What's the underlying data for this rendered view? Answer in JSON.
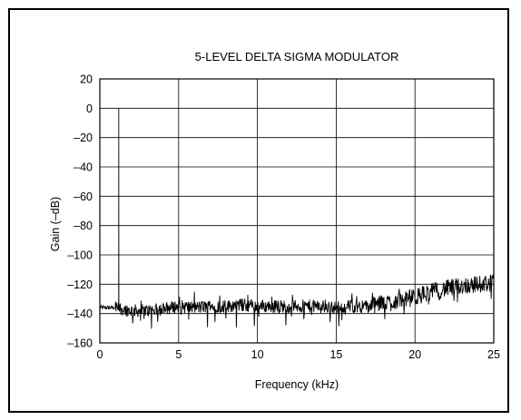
{
  "chart_data": {
    "type": "line",
    "title": "5-LEVEL DELTA SIGMA MODULATOR",
    "xlabel": "Frequency (kHz)",
    "ylabel": "Gain (–dB)",
    "xlim": [
      0,
      25
    ],
    "ylim": [
      -160,
      20
    ],
    "x_ticks": [
      0,
      5,
      10,
      15,
      20,
      25
    ],
    "y_ticks": [
      20,
      0,
      -20,
      -40,
      -60,
      -80,
      -100,
      -120,
      -140,
      -160
    ],
    "y_tick_labels": [
      "20",
      "0",
      "–20",
      "–40",
      "–60",
      "–80",
      "–100",
      "–120",
      "–140",
      "–160"
    ],
    "grid": true,
    "spike": {
      "x": 1.2,
      "y": 0
    },
    "noise_floor_envelope": {
      "x": [
        0,
        1,
        2,
        3,
        4,
        5,
        6,
        7,
        8,
        9,
        10,
        11,
        12,
        13,
        14,
        15,
        16,
        17,
        18,
        19,
        20,
        21,
        22,
        23,
        24,
        25
      ],
      "y": [
        -136,
        -136,
        -138,
        -138,
        -137,
        -135,
        -136,
        -135,
        -135,
        -134,
        -135,
        -135,
        -135,
        -135,
        -135,
        -136,
        -135,
        -135,
        -133,
        -131,
        -129,
        -125,
        -123,
        -121,
        -120,
        -119
      ]
    },
    "line_color": "#000000"
  }
}
